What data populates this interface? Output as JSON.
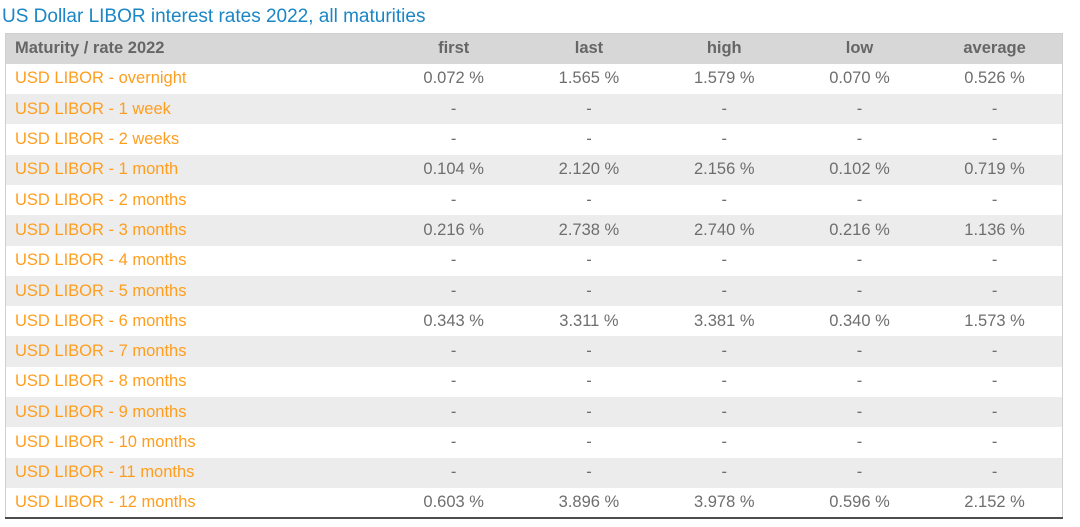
{
  "page_title": "US Dollar LIBOR interest rates 2022, all maturities",
  "colors": {
    "title-blue": "#1a86c5",
    "accent-orange": "#ff9e1e",
    "header-bg": "#d7d7d7",
    "header-text": "#666666",
    "value-text": "#6e6e6e",
    "stripe-bg": "#ececec",
    "border-light": "#cfcfcf",
    "border-dark": "#4d4d4d"
  },
  "chart_data": {
    "type": "table",
    "title": "US Dollar LIBOR interest rates 2022, all maturities",
    "columns": [
      "Maturity / rate 2022",
      "first",
      "last",
      "high",
      "low",
      "average"
    ],
    "rows": [
      {
        "label": "USD LIBOR - overnight",
        "values": [
          "0.072 %",
          "1.565 %",
          "1.579 %",
          "0.070 %",
          "0.526 %"
        ]
      },
      {
        "label": "USD LIBOR - 1 week",
        "values": [
          "-",
          "-",
          "-",
          "-",
          "-"
        ]
      },
      {
        "label": "USD LIBOR - 2 weeks",
        "values": [
          "-",
          "-",
          "-",
          "-",
          "-"
        ]
      },
      {
        "label": "USD LIBOR - 1 month",
        "values": [
          "0.104 %",
          "2.120 %",
          "2.156 %",
          "0.102 %",
          "0.719 %"
        ]
      },
      {
        "label": "USD LIBOR - 2 months",
        "values": [
          "-",
          "-",
          "-",
          "-",
          "-"
        ]
      },
      {
        "label": "USD LIBOR - 3 months",
        "values": [
          "0.216 %",
          "2.738 %",
          "2.740 %",
          "0.216 %",
          "1.136 %"
        ]
      },
      {
        "label": "USD LIBOR - 4 months",
        "values": [
          "-",
          "-",
          "-",
          "-",
          "-"
        ]
      },
      {
        "label": "USD LIBOR - 5 months",
        "values": [
          "-",
          "-",
          "-",
          "-",
          "-"
        ]
      },
      {
        "label": "USD LIBOR - 6 months",
        "values": [
          "0.343 %",
          "3.311 %",
          "3.381 %",
          "0.340 %",
          "1.573 %"
        ]
      },
      {
        "label": "USD LIBOR - 7 months",
        "values": [
          "-",
          "-",
          "-",
          "-",
          "-"
        ]
      },
      {
        "label": "USD LIBOR - 8 months",
        "values": [
          "-",
          "-",
          "-",
          "-",
          "-"
        ]
      },
      {
        "label": "USD LIBOR - 9 months",
        "values": [
          "-",
          "-",
          "-",
          "-",
          "-"
        ]
      },
      {
        "label": "USD LIBOR - 10 months",
        "values": [
          "-",
          "-",
          "-",
          "-",
          "-"
        ]
      },
      {
        "label": "USD LIBOR - 11 months",
        "values": [
          "-",
          "-",
          "-",
          "-",
          "-"
        ]
      },
      {
        "label": "USD LIBOR - 12 months",
        "values": [
          "0.603 %",
          "3.896 %",
          "3.978 %",
          "0.596 %",
          "2.152 %"
        ]
      }
    ]
  }
}
